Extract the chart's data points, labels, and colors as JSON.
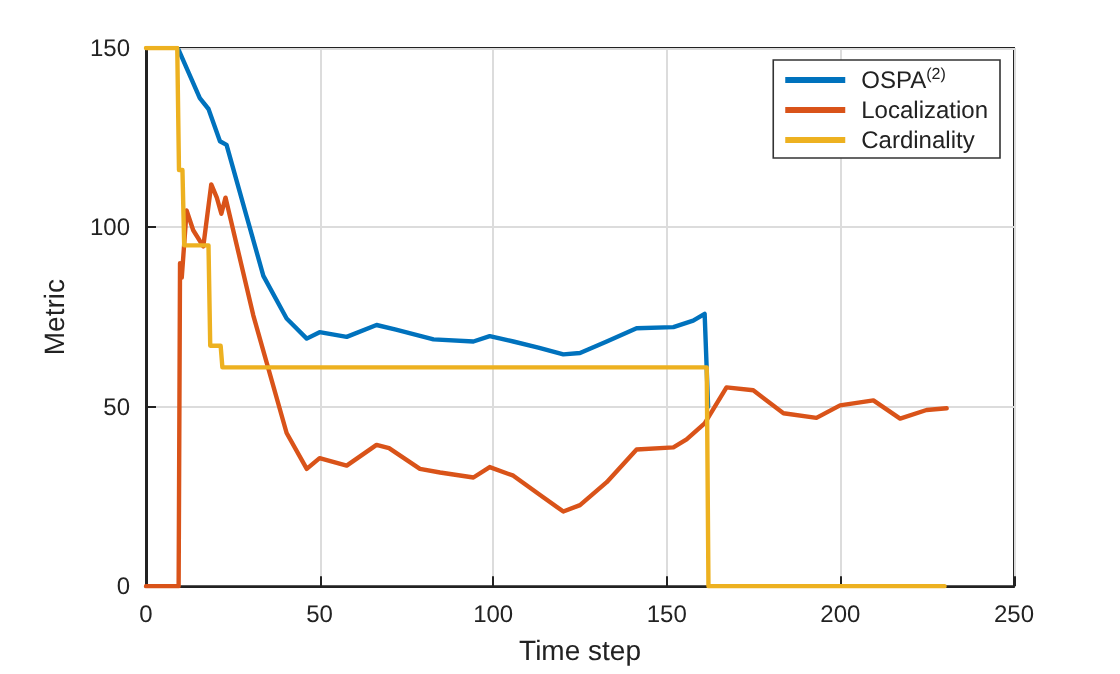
{
  "chart_data": {
    "type": "line",
    "xlabel": "Time step",
    "ylabel": "Metric",
    "xlim": [
      0,
      250
    ],
    "xticks": [
      0,
      50,
      100,
      150,
      200,
      250
    ],
    "ylim": [
      0,
      150
    ],
    "yticks": [
      0,
      50,
      100,
      150
    ],
    "grid": true,
    "legend": "top right",
    "line_style": "solid",
    "marker": "none",
    "series": [
      {
        "name": "OSPA$^{(2)}$",
        "color": "#0072bd",
        "x": [
          9.4,
          15.5,
          18,
          21.3,
          23.2,
          29,
          33.8,
          40.5,
          46.3,
          50,
          57.8,
          66.4,
          72,
          82.8,
          94.3,
          99,
          105.8,
          113,
          120.2,
          125,
          132.7,
          141.3,
          151.9,
          157.6,
          160.9,
          161.9
        ],
        "values": [
          149.5,
          136,
          133,
          124,
          123,
          103,
          86.5,
          74.6,
          69,
          70.8,
          69.5,
          72.8,
          71.5,
          68.8,
          68.2,
          69.7,
          68.2,
          66.5,
          64.6,
          65,
          68.2,
          71.9,
          72.2,
          74,
          75.9,
          50
        ]
      },
      {
        "name": "Localization",
        "color": "#d95319",
        "x": [
          0,
          9.4,
          9.8,
          10.3,
          11.7,
          13.6,
          16.5,
          18.8,
          20.4,
          21.7,
          22.9,
          30.9,
          40.5,
          46.3,
          50,
          57.8,
          66.4,
          70,
          78.9,
          84.7,
          94.3,
          99,
          105.8,
          113.5,
          120.2,
          125,
          132.7,
          141.3,
          151.9,
          155.7,
          160.9,
          167.2,
          174.9,
          183.6,
          193.1,
          199.9,
          209.5,
          217.2,
          224.8,
          230.6
        ],
        "values": [
          0,
          0,
          90,
          86,
          104.7,
          99.2,
          94.7,
          112,
          108.3,
          103.8,
          108.3,
          75.5,
          42.7,
          32.7,
          35.7,
          33.6,
          39.4,
          38.5,
          32.7,
          31.7,
          30.3,
          33.2,
          30.8,
          25.4,
          20.8,
          22.6,
          29,
          38.1,
          38.7,
          40.9,
          45.4,
          55.4,
          54.6,
          48.2,
          46.9,
          50.4,
          51.8,
          46.7,
          49.1,
          49.6
        ]
      },
      {
        "name": "Cardinality",
        "color": "#edb120",
        "x": [
          0,
          9,
          9.5,
          10.5,
          11,
          18,
          18.5,
          21.5,
          22,
          161.5,
          162,
          230
        ],
        "values": [
          150,
          150,
          116,
          116,
          95,
          95,
          67,
          67,
          61,
          61,
          0,
          0
        ]
      }
    ]
  }
}
